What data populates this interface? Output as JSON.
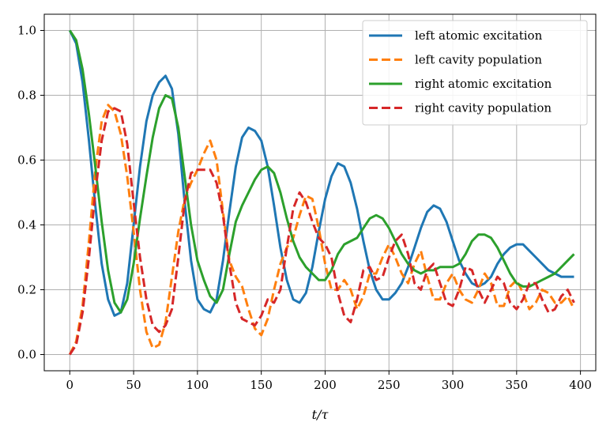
{
  "chart_data": {
    "type": "line",
    "xlabel": "t/τ",
    "ylabel": "",
    "xlim": [
      -20,
      412
    ],
    "ylim": [
      -0.05,
      1.05
    ],
    "xticks": [
      0,
      50,
      100,
      150,
      200,
      250,
      300,
      350,
      400
    ],
    "yticks": [
      0.0,
      0.2,
      0.4,
      0.6,
      0.8,
      1.0
    ],
    "grid": true,
    "legend_position": "top-right",
    "series": [
      {
        "name": "left atomic excitation",
        "color": "#1f77b4",
        "dash": "solid",
        "x": [
          0,
          5,
          10,
          15,
          20,
          25,
          30,
          35,
          40,
          45,
          50,
          55,
          60,
          65,
          70,
          75,
          80,
          85,
          90,
          95,
          100,
          105,
          110,
          115,
          120,
          125,
          130,
          135,
          140,
          145,
          150,
          155,
          160,
          165,
          170,
          175,
          180,
          185,
          190,
          195,
          200,
          205,
          210,
          215,
          220,
          225,
          230,
          235,
          240,
          245,
          250,
          255,
          260,
          265,
          270,
          275,
          280,
          285,
          290,
          295,
          300,
          305,
          310,
          315,
          320,
          325,
          330,
          335,
          340,
          345,
          350,
          355,
          360,
          365,
          370,
          375,
          380,
          385,
          390,
          395
        ],
        "y": [
          1.0,
          0.96,
          0.84,
          0.66,
          0.46,
          0.28,
          0.17,
          0.12,
          0.13,
          0.22,
          0.4,
          0.58,
          0.72,
          0.8,
          0.84,
          0.86,
          0.82,
          0.68,
          0.47,
          0.29,
          0.17,
          0.14,
          0.13,
          0.17,
          0.29,
          0.44,
          0.58,
          0.67,
          0.7,
          0.69,
          0.66,
          0.58,
          0.46,
          0.33,
          0.23,
          0.17,
          0.16,
          0.19,
          0.27,
          0.38,
          0.48,
          0.55,
          0.59,
          0.58,
          0.53,
          0.45,
          0.35,
          0.26,
          0.2,
          0.17,
          0.17,
          0.19,
          0.22,
          0.27,
          0.33,
          0.39,
          0.44,
          0.46,
          0.45,
          0.41,
          0.35,
          0.29,
          0.25,
          0.22,
          0.21,
          0.22,
          0.24,
          0.28,
          0.31,
          0.33,
          0.34,
          0.34,
          0.32,
          0.3,
          0.28,
          0.26,
          0.25,
          0.24,
          0.24,
          0.24
        ]
      },
      {
        "name": "left cavity population",
        "color": "#ff7f0e",
        "dash": "dashed",
        "x": [
          0,
          5,
          10,
          15,
          20,
          25,
          30,
          35,
          40,
          45,
          50,
          55,
          60,
          65,
          70,
          75,
          80,
          85,
          90,
          95,
          100,
          105,
          110,
          115,
          120,
          125,
          130,
          135,
          140,
          145,
          150,
          155,
          160,
          165,
          170,
          175,
          180,
          185,
          190,
          195,
          200,
          205,
          210,
          215,
          220,
          225,
          230,
          235,
          240,
          245,
          250,
          255,
          260,
          265,
          270,
          275,
          280,
          285,
          290,
          295,
          300,
          305,
          310,
          315,
          320,
          325,
          330,
          335,
          340,
          345,
          350,
          355,
          360,
          365,
          370,
          375,
          380,
          385,
          390,
          395
        ],
        "y": [
          0.0,
          0.04,
          0.15,
          0.35,
          0.57,
          0.72,
          0.77,
          0.75,
          0.68,
          0.55,
          0.38,
          0.2,
          0.07,
          0.02,
          0.03,
          0.1,
          0.24,
          0.38,
          0.48,
          0.53,
          0.57,
          0.62,
          0.66,
          0.6,
          0.44,
          0.29,
          0.24,
          0.21,
          0.14,
          0.08,
          0.06,
          0.11,
          0.2,
          0.28,
          0.33,
          0.36,
          0.43,
          0.49,
          0.48,
          0.39,
          0.28,
          0.2,
          0.2,
          0.23,
          0.2,
          0.14,
          0.18,
          0.25,
          0.25,
          0.3,
          0.34,
          0.3,
          0.25,
          0.22,
          0.28,
          0.32,
          0.24,
          0.17,
          0.17,
          0.22,
          0.25,
          0.2,
          0.17,
          0.16,
          0.2,
          0.25,
          0.22,
          0.15,
          0.15,
          0.21,
          0.23,
          0.19,
          0.14,
          0.16,
          0.2,
          0.19,
          0.16,
          0.16,
          0.18,
          0.14
        ]
      },
      {
        "name": "right atomic excitation",
        "color": "#2ca02c",
        "dash": "solid",
        "x": [
          0,
          5,
          10,
          15,
          20,
          25,
          30,
          35,
          40,
          45,
          50,
          55,
          60,
          65,
          70,
          75,
          80,
          85,
          90,
          95,
          100,
          105,
          110,
          115,
          120,
          125,
          130,
          135,
          140,
          145,
          150,
          155,
          160,
          165,
          170,
          175,
          180,
          185,
          190,
          195,
          200,
          205,
          210,
          215,
          220,
          225,
          230,
          235,
          240,
          245,
          250,
          255,
          260,
          265,
          270,
          275,
          280,
          285,
          290,
          295,
          300,
          305,
          310,
          315,
          320,
          325,
          330,
          335,
          340,
          345,
          350,
          355,
          360,
          365,
          370,
          375,
          380,
          385,
          390,
          395
        ],
        "y": [
          1.0,
          0.97,
          0.88,
          0.74,
          0.58,
          0.41,
          0.26,
          0.16,
          0.13,
          0.17,
          0.28,
          0.42,
          0.55,
          0.67,
          0.76,
          0.8,
          0.79,
          0.7,
          0.55,
          0.4,
          0.29,
          0.23,
          0.18,
          0.16,
          0.2,
          0.31,
          0.41,
          0.46,
          0.5,
          0.54,
          0.57,
          0.58,
          0.56,
          0.5,
          0.42,
          0.35,
          0.3,
          0.27,
          0.25,
          0.23,
          0.23,
          0.26,
          0.31,
          0.34,
          0.35,
          0.36,
          0.39,
          0.42,
          0.43,
          0.42,
          0.39,
          0.35,
          0.31,
          0.28,
          0.26,
          0.25,
          0.26,
          0.26,
          0.27,
          0.27,
          0.27,
          0.28,
          0.31,
          0.35,
          0.37,
          0.37,
          0.36,
          0.33,
          0.29,
          0.25,
          0.22,
          0.21,
          0.21,
          0.22,
          0.23,
          0.24,
          0.25,
          0.27,
          0.29,
          0.31
        ]
      },
      {
        "name": "right cavity population",
        "color": "#d62728",
        "dash": "dashed",
        "x": [
          0,
          5,
          10,
          15,
          20,
          25,
          30,
          35,
          40,
          45,
          50,
          55,
          60,
          65,
          70,
          75,
          80,
          85,
          90,
          95,
          100,
          105,
          110,
          115,
          120,
          125,
          130,
          135,
          140,
          145,
          150,
          155,
          160,
          165,
          170,
          175,
          180,
          185,
          190,
          195,
          200,
          205,
          210,
          215,
          220,
          225,
          230,
          235,
          240,
          245,
          250,
          255,
          260,
          265,
          270,
          275,
          280,
          285,
          290,
          295,
          300,
          305,
          310,
          315,
          320,
          325,
          330,
          335,
          340,
          345,
          350,
          355,
          360,
          365,
          370,
          375,
          380,
          385,
          390,
          395
        ],
        "y": [
          0.0,
          0.03,
          0.13,
          0.3,
          0.5,
          0.66,
          0.75,
          0.76,
          0.75,
          0.65,
          0.47,
          0.3,
          0.17,
          0.09,
          0.07,
          0.09,
          0.14,
          0.3,
          0.47,
          0.56,
          0.57,
          0.57,
          0.57,
          0.53,
          0.43,
          0.28,
          0.16,
          0.11,
          0.1,
          0.09,
          0.12,
          0.17,
          0.16,
          0.2,
          0.33,
          0.45,
          0.5,
          0.47,
          0.41,
          0.36,
          0.34,
          0.3,
          0.19,
          0.12,
          0.1,
          0.17,
          0.26,
          0.27,
          0.23,
          0.24,
          0.3,
          0.35,
          0.37,
          0.31,
          0.22,
          0.2,
          0.26,
          0.28,
          0.22,
          0.16,
          0.15,
          0.2,
          0.27,
          0.26,
          0.2,
          0.16,
          0.2,
          0.24,
          0.22,
          0.16,
          0.14,
          0.17,
          0.22,
          0.22,
          0.17,
          0.13,
          0.14,
          0.18,
          0.2,
          0.16
        ]
      }
    ]
  }
}
